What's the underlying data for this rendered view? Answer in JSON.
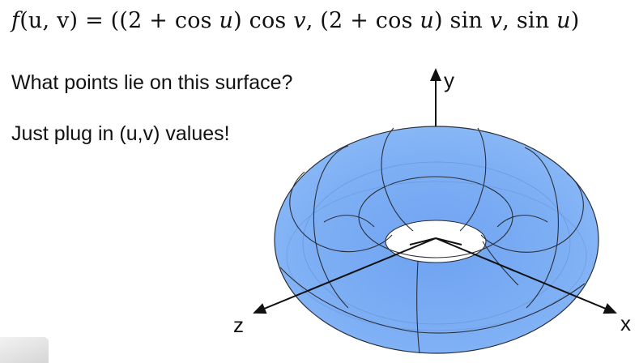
{
  "formula": {
    "fn": "f",
    "args": "(u, v)",
    "eq": " = ",
    "body_start": "((2 + cos ",
    "u1": "u",
    "body_mid1": ") cos ",
    "v1": "v",
    "body_mid2": ", (2 + cos ",
    "u2": "u",
    "body_mid3": ") sin ",
    "v2": "v",
    "body_mid4": ", sin ",
    "u3": "u",
    "body_end": ")"
  },
  "text": {
    "question": "What points lie on this surface?",
    "hint": "Just plug in (u,v) values!"
  },
  "axes": {
    "x_label": "x",
    "y_label": "y",
    "z_label": "z"
  },
  "colors": {
    "torus_fill": "#7fb0f5",
    "torus_shadow": "#5b93e6",
    "mesh_line": "#2a2f3a",
    "axis": "#111111"
  },
  "icons": [
    "arrow-up-icon",
    "arrow-right-icon",
    "arrow-down-left-icon"
  ]
}
